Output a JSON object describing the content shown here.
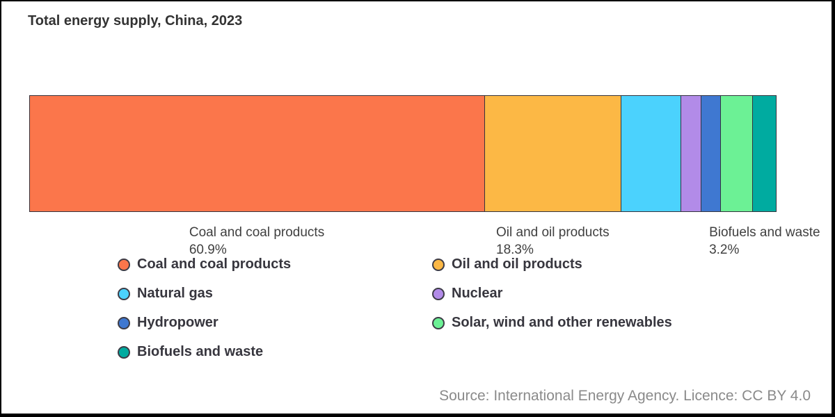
{
  "title": "Total energy supply, China, 2023",
  "source_note": "Source: International Energy Agency. Licence: CC BY 4.0",
  "chart_data": {
    "type": "bar",
    "variant": "horizontal-stacked-100pct",
    "title": "Total energy supply, China, 2023",
    "unit": "%",
    "grid": false,
    "axes_shown": false,
    "legend_position": "bottom-two-columns",
    "series": [
      {
        "name": "Coal and coal products",
        "value": 60.9,
        "color": "#FB764B",
        "label_visible": true
      },
      {
        "name": "Oil and oil products",
        "value": 18.3,
        "color": "#FCB845",
        "label_visible": true
      },
      {
        "name": "Natural gas",
        "value": 8.0,
        "color": "#4BD2FD",
        "label_visible": false
      },
      {
        "name": "Nuclear",
        "value": 2.7,
        "color": "#B28BE8",
        "label_visible": false
      },
      {
        "name": "Hydropower",
        "value": 2.6,
        "color": "#3F78D1",
        "label_visible": false
      },
      {
        "name": "Solar, wind and other renewables",
        "value": 4.3,
        "color": "#6CF195",
        "label_visible": false
      },
      {
        "name": "Biofuels and waste",
        "value": 3.2,
        "color": "#00ABA0",
        "label_visible": false
      }
    ],
    "annotations": [
      {
        "series_index": 0,
        "label": "Coal and coal products",
        "pct": "60.9%"
      },
      {
        "series_index": 1,
        "label": "Oil and oil products",
        "pct": "18.3%"
      },
      {
        "series_index": 6,
        "label": "Biofuels and waste",
        "pct": "3.2%"
      }
    ],
    "legend_columns": [
      [
        0,
        2,
        4,
        6
      ],
      [
        1,
        3,
        5
      ]
    ],
    "segment_outline_color": "#33333d",
    "text_color": "#37363e",
    "annotation_text_color": "#404040",
    "source_text_color": "#8a8a8a"
  }
}
